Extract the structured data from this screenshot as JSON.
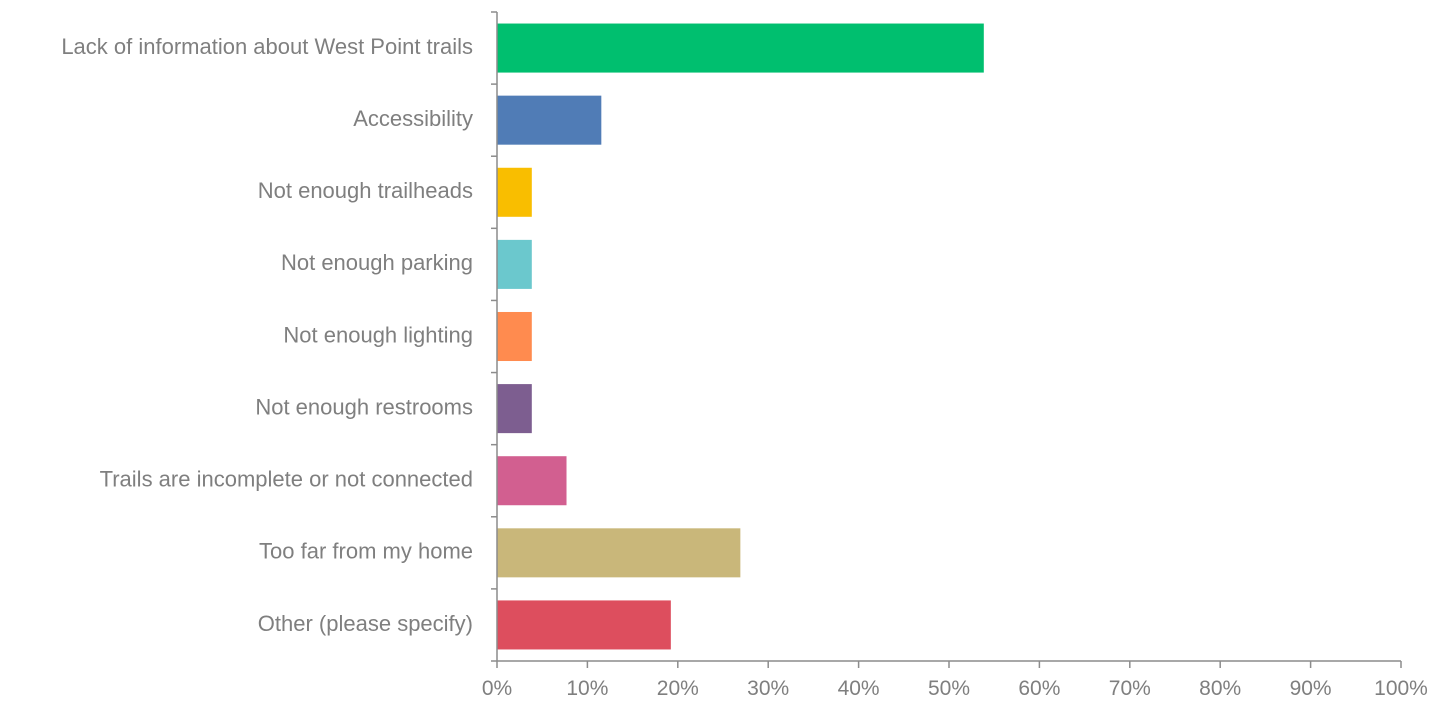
{
  "chart_data": {
    "type": "bar",
    "orientation": "horizontal",
    "title": "",
    "xlabel": "",
    "ylabel": "",
    "categories": [
      "Lack of information about West Point trails",
      "Accessibility",
      "Not enough trailheads",
      "Not enough parking",
      "Not enough lighting",
      "Not enough restrooms",
      "Trails are incomplete or not connected",
      "Too far from my home",
      "Other (please specify)"
    ],
    "values": [
      53.85,
      11.54,
      3.85,
      3.85,
      3.85,
      3.85,
      7.69,
      26.92,
      19.23
    ],
    "colors": [
      "#00bf6f",
      "#507cb6",
      "#f9be00",
      "#6bc8cd",
      "#ff8b4f",
      "#7d5e90",
      "#d25f90",
      "#c9b77a",
      "#dd4e5e"
    ],
    "xlim": [
      0,
      100
    ],
    "x_ticks": [
      "0%",
      "10%",
      "20%",
      "30%",
      "40%",
      "50%",
      "60%",
      "70%",
      "80%",
      "90%",
      "100%"
    ],
    "x_tick_values": [
      0,
      10,
      20,
      30,
      40,
      50,
      60,
      70,
      80,
      90,
      100
    ],
    "grid": false,
    "legend": "none"
  }
}
